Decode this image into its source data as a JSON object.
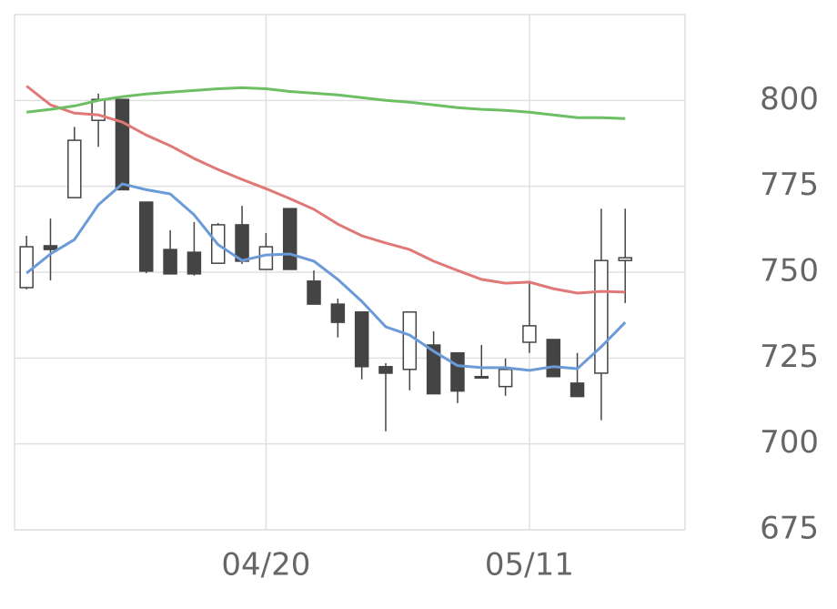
{
  "chart_data": {
    "type": "candlestick",
    "categories": [
      null,
      null,
      null,
      null,
      null,
      null,
      null,
      null,
      null,
      null,
      "04/20",
      null,
      null,
      null,
      null,
      null,
      null,
      null,
      null,
      null,
      null,
      "05/11",
      null,
      null,
      null,
      null
    ],
    "open": [
      745.5,
      757.7,
      771.7,
      794.2,
      800.3,
      770.4,
      756.6,
      755.8,
      752.6,
      763.8,
      750.8,
      768.5,
      747.4,
      740.7,
      738.4,
      722.5,
      721.7,
      728.8,
      726.5,
      719.6,
      716.7,
      729.6,
      730.4,
      717.7,
      720.6,
      753.4
    ],
    "high": [
      760.6,
      765.6,
      792.3,
      802.0,
      800.5,
      770.4,
      762.2,
      764.6,
      764.3,
      769.3,
      761.4,
      768.5,
      750.5,
      742.3,
      738.4,
      723.5,
      738.4,
      732.8,
      726.5,
      728.8,
      724.9,
      746.8,
      730.4,
      726.5,
      768.5,
      768.5
    ],
    "low": [
      745.0,
      747.6,
      771.7,
      786.5,
      774.0,
      749.7,
      749.5,
      749.0,
      752.6,
      752.4,
      750.8,
      750.8,
      740.7,
      731.0,
      718.8,
      703.7,
      715.6,
      714.6,
      711.9,
      719.3,
      714.0,
      726.5,
      719.6,
      713.8,
      706.9,
      741.0
    ],
    "close": [
      757.4,
      756.6,
      788.4,
      800.3,
      774.0,
      750.3,
      749.5,
      749.5,
      763.8,
      753.2,
      757.4,
      750.8,
      740.7,
      735.4,
      722.5,
      720.6,
      738.4,
      714.6,
      715.4,
      719.3,
      721.7,
      734.4,
      719.6,
      713.8,
      753.4,
      754.2
    ],
    "up_color": "#ffffff",
    "down_color": "#444444",
    "edge_color": "#444444",
    "series": [
      {
        "color": "#6a9bd8",
        "values": [
          749.7,
          755.3,
          759.5,
          769.6,
          775.7,
          774.0,
          772.8,
          766.7,
          758.0,
          753.4,
          755.0,
          755.3,
          753.2,
          747.9,
          741.5,
          734.1,
          731.7,
          727.0,
          722.8,
          722.2,
          722.2,
          721.4,
          722.5,
          721.9,
          728.3,
          735.4
        ]
      },
      {
        "color": "#e07878",
        "values": [
          804.2,
          798.7,
          796.3,
          795.8,
          793.7,
          789.9,
          786.8,
          783.1,
          779.9,
          777.0,
          774.3,
          771.4,
          768.3,
          764.0,
          760.6,
          758.5,
          756.6,
          753.2,
          750.5,
          747.9,
          746.8,
          747.1,
          745.2,
          743.9,
          744.4,
          744.2
        ]
      },
      {
        "color": "#6cbf63",
        "values": [
          796.6,
          797.4,
          798.4,
          800.0,
          801.1,
          801.9,
          802.4,
          802.9,
          803.4,
          803.7,
          803.4,
          802.6,
          802.1,
          801.6,
          800.8,
          800.0,
          799.5,
          798.7,
          797.9,
          797.4,
          797.1,
          796.6,
          795.8,
          795.0,
          795.0,
          794.7
        ]
      }
    ],
    "ylim": [
      675,
      825
    ],
    "yticks": [
      675,
      700,
      725,
      750,
      775,
      800
    ],
    "grid": true
  }
}
